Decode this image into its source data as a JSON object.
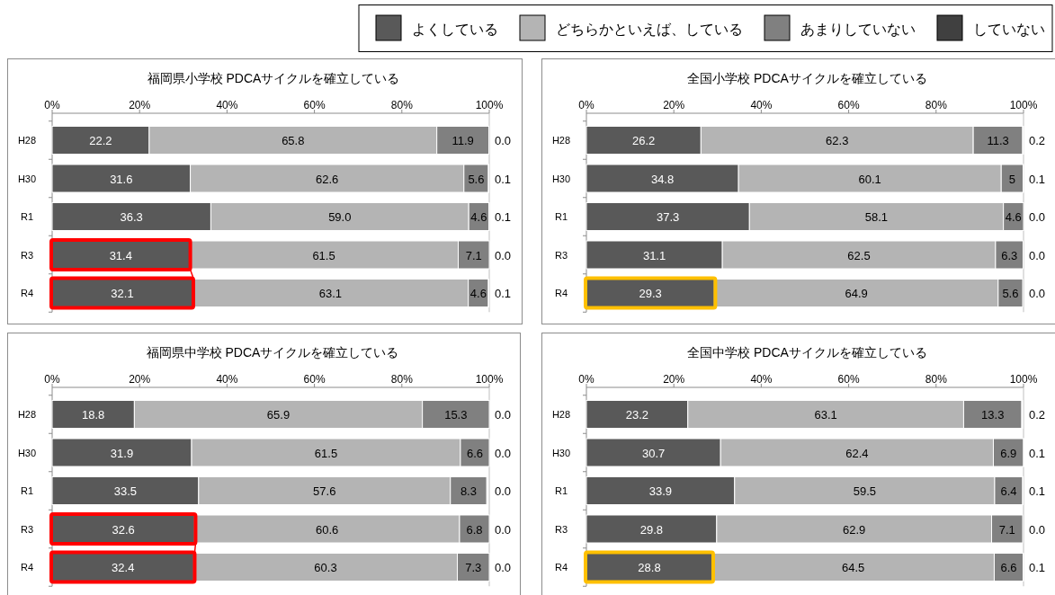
{
  "chart_data": [
    {
      "type": "bar",
      "orientation": "horizontal",
      "stacked": true,
      "title": "福岡県小学校 PDCAサイクルを確立している",
      "legend": "top right",
      "categories": [
        "H28",
        "H30",
        "R1",
        "R3",
        "R4"
      ],
      "xlim": [
        0,
        100
      ],
      "xticks": [
        {
          "value": 0,
          "label": "0%"
        },
        {
          "value": 20,
          "label": "20%"
        },
        {
          "value": 40,
          "label": "40%"
        },
        {
          "value": 60,
          "label": "60%"
        },
        {
          "value": 80,
          "label": "80%"
        },
        {
          "value": 100,
          "label": "100%"
        }
      ],
      "series": [
        {
          "name": "よくしている",
          "color": "#595959",
          "values": [
            22.2,
            31.6,
            36.3,
            31.4,
            32.1
          ],
          "value_labels": [
            "22.2",
            "31.6",
            "36.3",
            "31.4",
            "32.1"
          ]
        },
        {
          "name": "どちらかといえば、している",
          "color": "#b4b4b4",
          "values": [
            65.8,
            62.6,
            59.0,
            61.5,
            63.1
          ],
          "value_labels": [
            "65.8",
            "62.6",
            "59.0",
            "61.5",
            "63.1"
          ]
        },
        {
          "name": "あまりしていない",
          "color": "#808080",
          "values": [
            11.9,
            5.6,
            4.6,
            7.1,
            4.6
          ],
          "value_labels": [
            "11.9",
            "5.6",
            "4.6",
            "7.1",
            "4.6"
          ]
        },
        {
          "name": "していない",
          "color": "#404040",
          "values": [
            0.0,
            0.1,
            0.1,
            0.0,
            0.1
          ],
          "value_labels": [
            "0.0",
            "0.1",
            "0.1",
            "0.0",
            "0.1"
          ]
        }
      ]
    },
    {
      "type": "bar",
      "orientation": "horizontal",
      "stacked": true,
      "title": "全国小学校 PDCAサイクルを確立している",
      "categories": [
        "H28",
        "H30",
        "R1",
        "R3",
        "R4"
      ],
      "xlim": [
        0,
        100
      ],
      "xticks": [
        {
          "value": 0,
          "label": "0%"
        },
        {
          "value": 20,
          "label": "20%"
        },
        {
          "value": 40,
          "label": "40%"
        },
        {
          "value": 60,
          "label": "60%"
        },
        {
          "value": 80,
          "label": "80%"
        },
        {
          "value": 100,
          "label": "100%"
        }
      ],
      "series": [
        {
          "color": "#595959",
          "values": [
            26.2,
            34.8,
            37.3,
            31.1,
            29.3
          ],
          "value_labels": [
            "26.2",
            "34.8",
            "37.3",
            "31.1",
            "29.3"
          ]
        },
        {
          "color": "#b4b4b4",
          "values": [
            62.3,
            60.1,
            58.1,
            62.5,
            64.9
          ],
          "value_labels": [
            "62.3",
            "60.1",
            "58.1",
            "62.5",
            "64.9"
          ]
        },
        {
          "color": "#808080",
          "values": [
            11.3,
            5,
            4.6,
            6.3,
            5.6
          ],
          "value_labels": [
            "11.3",
            "5",
            "4.6",
            "6.3",
            "5.6"
          ]
        },
        {
          "color": "#404040",
          "values": [
            0.2,
            0.1,
            0.0,
            0.0,
            0.0
          ],
          "value_labels": [
            "0.2",
            "0.1",
            "0.0",
            "0.0",
            "0.0"
          ]
        }
      ]
    },
    {
      "type": "bar",
      "orientation": "horizontal",
      "stacked": true,
      "title": "福岡県中学校 PDCAサイクルを確立している",
      "categories": [
        "H28",
        "H30",
        "R1",
        "R3",
        "R4"
      ],
      "xlim": [
        0,
        100
      ],
      "xticks": [
        {
          "value": 0,
          "label": "0%"
        },
        {
          "value": 20,
          "label": "20%"
        },
        {
          "value": 40,
          "label": "40%"
        },
        {
          "value": 60,
          "label": "60%"
        },
        {
          "value": 80,
          "label": "80%"
        },
        {
          "value": 100,
          "label": "100%"
        }
      ],
      "series": [
        {
          "color": "#595959",
          "values": [
            18.8,
            31.9,
            33.5,
            32.6,
            32.4
          ],
          "value_labels": [
            "18.8",
            "31.9",
            "33.5",
            "32.6",
            "32.4"
          ]
        },
        {
          "color": "#b4b4b4",
          "values": [
            65.9,
            61.5,
            57.6,
            60.6,
            60.3
          ],
          "value_labels": [
            "65.9",
            "61.5",
            "57.6",
            "60.6",
            "60.3"
          ]
        },
        {
          "color": "#808080",
          "values": [
            15.3,
            6.6,
            8.3,
            6.8,
            7.3
          ],
          "value_labels": [
            "15.3",
            "6.6",
            "8.3",
            "6.8",
            "7.3"
          ]
        },
        {
          "color": "#404040",
          "values": [
            0.0,
            0.0,
            0.0,
            0.0,
            0.0
          ],
          "value_labels": [
            "0.0",
            "0.0",
            "0.0",
            "0.0",
            "0.0"
          ]
        }
      ]
    },
    {
      "type": "bar",
      "orientation": "horizontal",
      "stacked": true,
      "title": "全国中学校 PDCAサイクルを確立している",
      "categories": [
        "H28",
        "H30",
        "R1",
        "R3",
        "R4"
      ],
      "xlim": [
        0,
        100
      ],
      "xticks": [
        {
          "value": 0,
          "label": "0%"
        },
        {
          "value": 20,
          "label": "20%"
        },
        {
          "value": 40,
          "label": "40%"
        },
        {
          "value": 60,
          "label": "60%"
        },
        {
          "value": 80,
          "label": "80%"
        },
        {
          "value": 100,
          "label": "100%"
        }
      ],
      "series": [
        {
          "color": "#595959",
          "values": [
            23.2,
            30.7,
            33.9,
            29.8,
            28.8
          ],
          "value_labels": [
            "23.2",
            "30.7",
            "33.9",
            "29.8",
            "28.8"
          ]
        },
        {
          "color": "#b4b4b4",
          "values": [
            63.1,
            62.4,
            59.5,
            62.9,
            64.5
          ],
          "value_labels": [
            "63.1",
            "62.4",
            "59.5",
            "62.9",
            "64.5"
          ]
        },
        {
          "color": "#808080",
          "values": [
            13.3,
            6.9,
            6.4,
            7.1,
            6.6
          ],
          "value_labels": [
            "13.3",
            "6.9",
            "6.4",
            "7.1",
            "6.6"
          ]
        },
        {
          "color": "#404040",
          "values": [
            0.2,
            0.1,
            0.1,
            0.0,
            0.1
          ],
          "value_labels": [
            "0.2",
            "0.1",
            "0.1",
            "0.0",
            "0.1"
          ]
        }
      ]
    }
  ]
}
